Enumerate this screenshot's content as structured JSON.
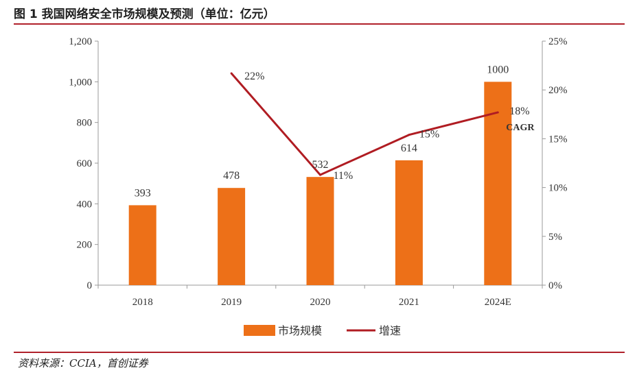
{
  "figure": {
    "title": "图 1 我国网络安全市场规模及预测（单位：亿元）",
    "source": "资料来源：CCIA，首创证券"
  },
  "colors": {
    "bar": "#ED7018",
    "line": "#B01C22",
    "rule": "#B0202A",
    "axis": "#999999",
    "text": "#333333"
  },
  "chart_data": {
    "type": "bar",
    "title": "我国网络安全市场规模及预测",
    "categories": [
      "2018",
      "2019",
      "2020",
      "2021",
      "2024E"
    ],
    "series": [
      {
        "name": "市场规模",
        "kind": "bar",
        "axis": "left",
        "values": [
          393,
          478,
          532,
          614,
          1000
        ],
        "labels": [
          "393",
          "478",
          "532",
          "614",
          "1000"
        ]
      },
      {
        "name": "增速",
        "kind": "line",
        "axis": "right",
        "values": [
          null,
          21.7,
          11.3,
          15.4,
          17.7
        ],
        "labels": [
          null,
          "22%",
          "11%",
          "15%",
          "18%"
        ]
      }
    ],
    "annotation": "CAGR",
    "y_left": {
      "min": 0,
      "max": 1200,
      "ticks": [
        0,
        200,
        400,
        600,
        800,
        1000,
        1200
      ],
      "tick_labels": [
        "0",
        "200",
        "400",
        "600",
        "800",
        "1,000",
        "1,200"
      ]
    },
    "y_right": {
      "min": 0,
      "max": 25,
      "ticks": [
        0,
        5,
        10,
        15,
        20,
        25
      ],
      "tick_labels": [
        "0%",
        "5%",
        "10%",
        "15%",
        "20%",
        "25%"
      ]
    },
    "legend": {
      "position": "bottom",
      "items": [
        "市场规模",
        "增速"
      ]
    },
    "grid": false
  }
}
